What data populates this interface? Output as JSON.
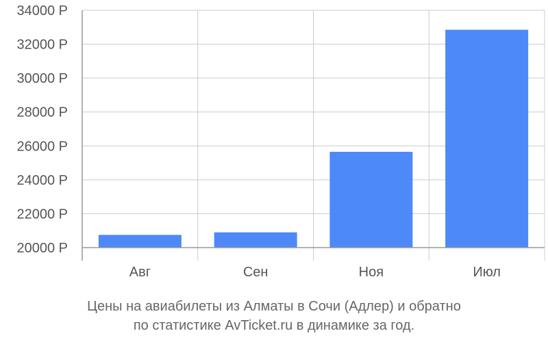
{
  "chart_data": {
    "type": "bar",
    "categories": [
      "Авг",
      "Сен",
      "Ноя",
      "Июл"
    ],
    "values": [
      20750,
      20900,
      25650,
      32850
    ],
    "title": "",
    "xlabel": "",
    "ylabel": "",
    "ylim": [
      20000,
      34000
    ],
    "yticks": [
      20000,
      22000,
      24000,
      26000,
      28000,
      30000,
      32000,
      34000
    ],
    "ytick_suffix": " Р",
    "grid": true,
    "bar_color": "#4d89f9",
    "grid_color": "#cccccc",
    "axis_color": "#999999"
  },
  "caption": {
    "line1": "Цены на авиабилеты из Алматы в Сочи (Адлер) и обратно",
    "line2": "по статистике AvTicket.ru в динамике за год."
  }
}
